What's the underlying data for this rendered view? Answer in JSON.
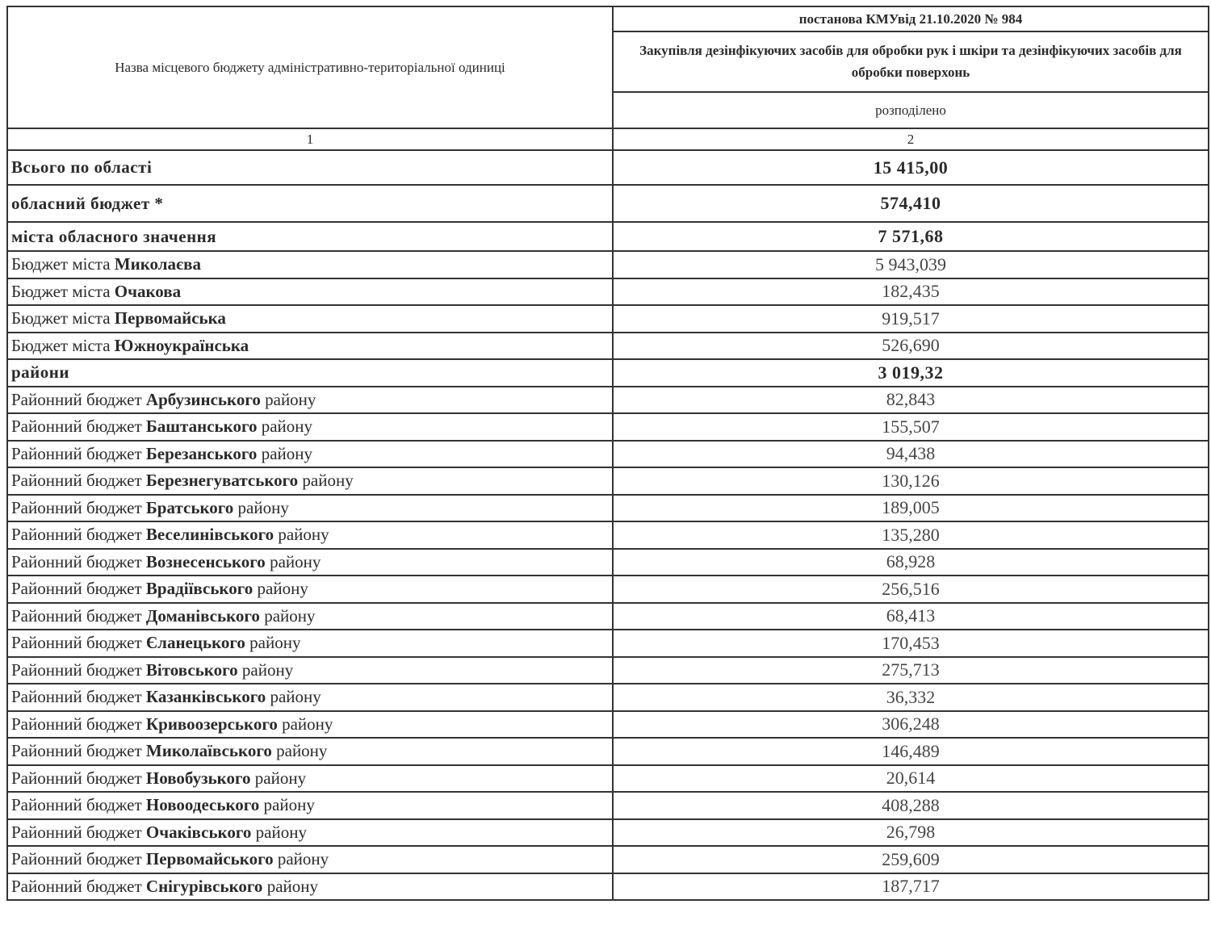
{
  "header": {
    "col1_title": "Назва місцевого бюджету адміністративно-територіальної одиниці",
    "resolution": "постанова КМУвід 21.10.2020 № 984",
    "purpose": "Закупівля дезінфікуючих засобів для обробки рук і шкіри та дезінфікуючих засобів для обробки поверхонь",
    "subcol": "розподілено",
    "col_num1": "1",
    "col_num2": "2"
  },
  "rows": [
    {
      "type": "total",
      "name": "Всього по області",
      "value": "15 415,00"
    },
    {
      "type": "total",
      "name": "обласний бюджет *",
      "value": "574,410"
    },
    {
      "type": "total",
      "name": "міста обласного значення",
      "value": "7 571,68"
    },
    {
      "type": "item",
      "prefix": "Бюджет міста ",
      "bold": "Миколаєва",
      "suffix": "",
      "value": "5 943,039"
    },
    {
      "type": "item",
      "prefix": "Бюджет міста ",
      "bold": "Очакова",
      "suffix": "",
      "value": "182,435"
    },
    {
      "type": "item",
      "prefix": "Бюджет міста ",
      "bold": "Первомайська",
      "suffix": "",
      "value": "919,517"
    },
    {
      "type": "item",
      "prefix": "Бюджет міста ",
      "bold": "Южноукраїнська",
      "suffix": "",
      "value": "526,690"
    },
    {
      "type": "total",
      "name": "райони",
      "value": "3 019,32"
    },
    {
      "type": "item",
      "prefix": "Районний бюджет ",
      "bold": "Арбузинського",
      "suffix": " району",
      "value": "82,843"
    },
    {
      "type": "item",
      "prefix": "Районний бюджет ",
      "bold": "Баштанського",
      "suffix": " району",
      "value": "155,507"
    },
    {
      "type": "item",
      "prefix": "Районний бюджет ",
      "bold": "Березанського",
      "suffix": " району",
      "value": "94,438"
    },
    {
      "type": "item",
      "prefix": "Районний бюджет ",
      "bold": "Березнегуватського",
      "suffix": " району",
      "value": "130,126"
    },
    {
      "type": "item",
      "prefix": "Районний бюджет ",
      "bold": "Братського",
      "suffix": " району",
      "value": "189,005"
    },
    {
      "type": "item",
      "prefix": "Районний бюджет ",
      "bold": "Веселинівського",
      "suffix": " району",
      "value": "135,280"
    },
    {
      "type": "item",
      "prefix": "Районний бюджет ",
      "bold": "Вознесенського",
      "suffix": " району",
      "value": "68,928"
    },
    {
      "type": "item",
      "prefix": "Районний бюджет ",
      "bold": "Врадіївського",
      "suffix": " району",
      "value": "256,516"
    },
    {
      "type": "item",
      "prefix": "Районний бюджет ",
      "bold": "Доманівського",
      "suffix": " району",
      "value": "68,413"
    },
    {
      "type": "item",
      "prefix": "Районний бюджет ",
      "bold": "Єланецького",
      "suffix": " району",
      "value": "170,453"
    },
    {
      "type": "item",
      "prefix": "Районний бюджет ",
      "bold": "Вітовського",
      "suffix": " району",
      "value": "275,713"
    },
    {
      "type": "item",
      "prefix": "Районний бюджет ",
      "bold": "Казанківського",
      "suffix": " району",
      "value": "36,332"
    },
    {
      "type": "item",
      "prefix": "Районний бюджет ",
      "bold": "Кривоозерського",
      "suffix": " району",
      "value": "306,248"
    },
    {
      "type": "item",
      "prefix": "Районний бюджет ",
      "bold": "Миколаївського",
      "suffix": " району",
      "value": "146,489"
    },
    {
      "type": "item",
      "prefix": "Районний бюджет ",
      "bold": "Новобузького",
      "suffix": " району",
      "value": "20,614"
    },
    {
      "type": "item",
      "prefix": "Районний бюджет ",
      "bold": "Новоодеського",
      "suffix": " району",
      "value": "408,288"
    },
    {
      "type": "item",
      "prefix": "Районний бюджет ",
      "bold": "Очаківського",
      "suffix": " району",
      "value": "26,798"
    },
    {
      "type": "item",
      "prefix": "Районний бюджет ",
      "bold": "Первомайського",
      "suffix": " району",
      "value": "259,609"
    },
    {
      "type": "item",
      "prefix": "Районний бюджет ",
      "bold": "Снігурівського",
      "suffix": " району",
      "value": "187,717"
    }
  ]
}
